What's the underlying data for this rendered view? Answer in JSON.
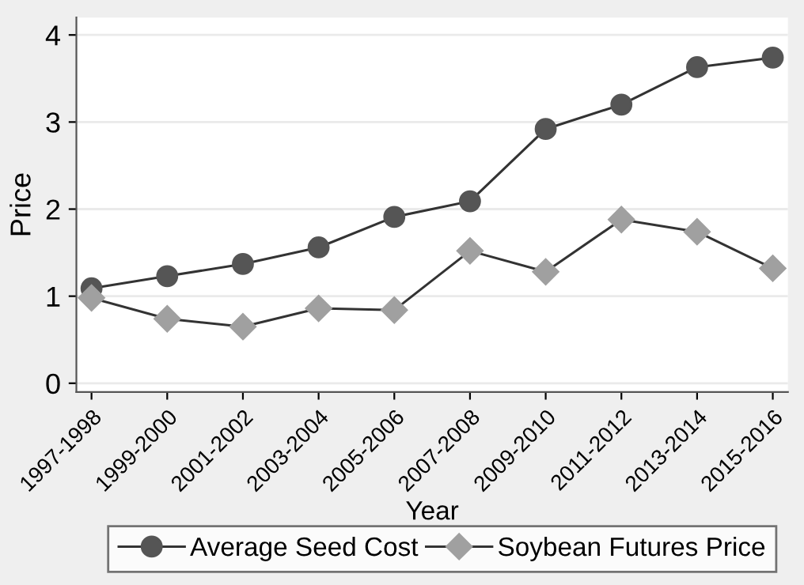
{
  "chart_data": {
    "type": "line",
    "xlabel": "Year",
    "ylabel": "Price",
    "categories": [
      "1997-1998",
      "1999-2000",
      "2001-2002",
      "2003-2004",
      "2005-2006",
      "2007-2008",
      "2009-2010",
      "2011-2012",
      "2013-2014",
      "2015-2016"
    ],
    "series": [
      {
        "name": "Average Seed Cost",
        "color": "#555555",
        "marker": "circle",
        "values": [
          1.09,
          1.23,
          1.37,
          1.56,
          1.91,
          2.09,
          2.92,
          3.2,
          3.63,
          3.74
        ]
      },
      {
        "name": "Soybean Futures Price",
        "color": "#a0a0a0",
        "marker": "diamond",
        "values": [
          0.98,
          0.74,
          0.65,
          0.86,
          0.84,
          1.52,
          1.28,
          1.88,
          1.74,
          1.32
        ]
      }
    ],
    "ylim": [
      -0.1,
      4.2
    ],
    "yticks": [
      0,
      1,
      2,
      3,
      4
    ],
    "grid": "y",
    "legend": "bottom",
    "line_style": "solid"
  }
}
